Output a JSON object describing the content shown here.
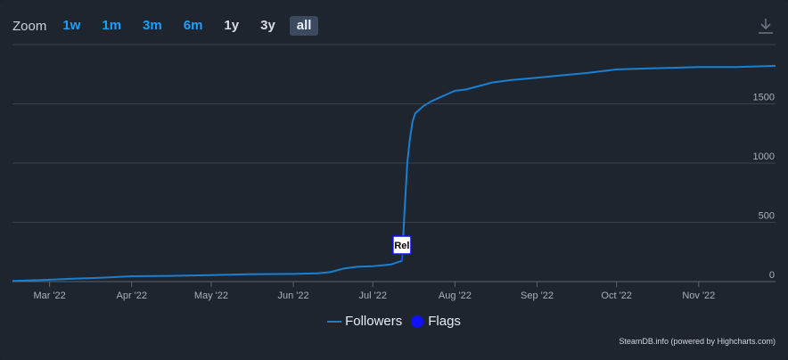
{
  "toolbar": {
    "zoom_label": "Zoom",
    "buttons": [
      "1w",
      "1m",
      "3m",
      "6m",
      "1y",
      "3y",
      "all"
    ],
    "active": "all",
    "export_icon": "download-icon"
  },
  "legend": {
    "followers": "Followers",
    "flags": "Flags"
  },
  "credits": "SteamDB.info (powered by Highcharts.com)",
  "colors": {
    "background": "#1f252e",
    "series": "#1a7fd0",
    "flag_marker": "#1010ff",
    "accent": "#1a9fff"
  },
  "chart_data": {
    "type": "line",
    "x_tick_labels": [
      "Mar '22",
      "Apr '22",
      "May '22",
      "Jun '22",
      "Jul '22",
      "Aug '22",
      "Sep '22",
      "Oct '22",
      "Nov '22"
    ],
    "y_tick_labels": [
      "0",
      "500",
      "1000",
      "1500"
    ],
    "ylim": [
      0,
      2000
    ],
    "xlim": [
      "2022-02-15",
      "2022-11-30"
    ],
    "grid": true,
    "legend_position": "bottom-center",
    "series": [
      {
        "name": "Followers",
        "x": [
          "2022-02-15",
          "2022-02-25",
          "2022-03-10",
          "2022-03-20",
          "2022-04-01",
          "2022-04-15",
          "2022-05-01",
          "2022-05-15",
          "2022-06-01",
          "2022-06-10",
          "2022-06-15",
          "2022-06-20",
          "2022-06-25",
          "2022-07-01",
          "2022-07-08",
          "2022-07-12",
          "2022-07-13",
          "2022-07-14",
          "2022-07-15",
          "2022-07-16",
          "2022-07-17",
          "2022-07-18",
          "2022-07-20",
          "2022-07-23",
          "2022-07-26",
          "2022-07-30",
          "2022-08-01",
          "2022-08-05",
          "2022-08-10",
          "2022-08-15",
          "2022-08-22",
          "2022-09-01",
          "2022-09-10",
          "2022-09-20",
          "2022-10-01",
          "2022-10-15",
          "2022-11-01",
          "2022-11-15",
          "2022-11-30"
        ],
        "values": [
          5,
          12,
          25,
          32,
          45,
          48,
          55,
          62,
          65,
          70,
          80,
          110,
          125,
          130,
          145,
          175,
          600,
          1000,
          1200,
          1350,
          1420,
          1440,
          1480,
          1520,
          1550,
          1590,
          1610,
          1620,
          1650,
          1680,
          1700,
          1720,
          1740,
          1760,
          1790,
          1800,
          1810,
          1810,
          1820
        ]
      }
    ],
    "flags": [
      {
        "x": "2022-07-12",
        "label": "Rel"
      }
    ]
  }
}
